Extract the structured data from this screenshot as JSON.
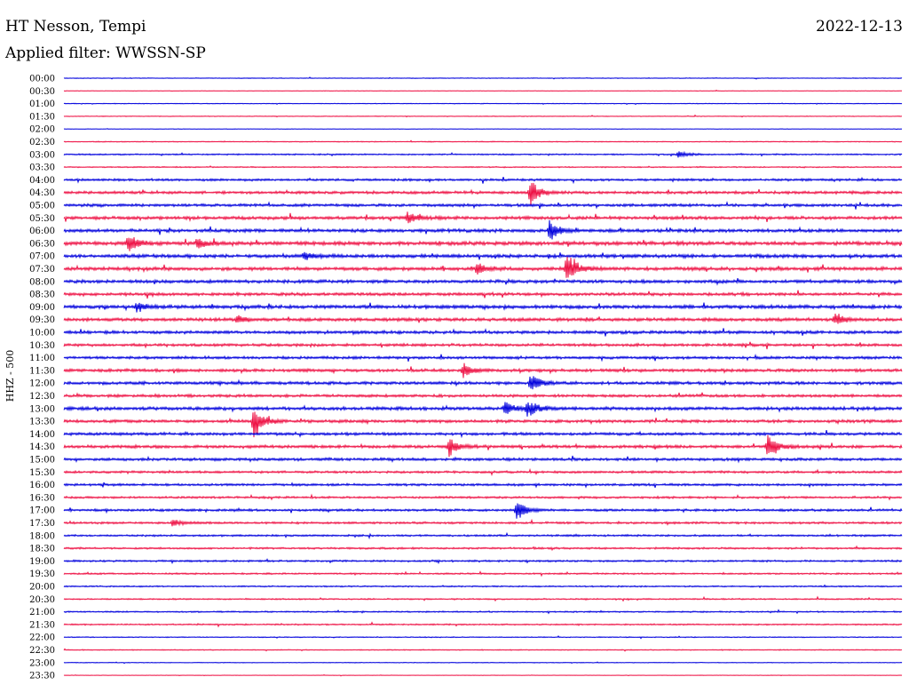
{
  "header": {
    "station": "HT Nesson, Tempi",
    "date": "2022-12-13",
    "filter_line": "Applied filter: WWSSN-SP"
  },
  "chart_data": {
    "type": "line",
    "title": "HT Nesson, Tempi",
    "ylabel": "HHZ - 500",
    "trace_colors": [
      "#0000dd",
      "#ee1144"
    ],
    "rows": [
      "00:00",
      "00:30",
      "01:00",
      "01:30",
      "02:00",
      "02:30",
      "03:00",
      "03:30",
      "04:00",
      "04:30",
      "05:00",
      "05:30",
      "06:00",
      "06:30",
      "07:00",
      "07:30",
      "08:00",
      "08:30",
      "09:00",
      "09:30",
      "10:00",
      "10:30",
      "11:00",
      "11:30",
      "12:00",
      "12:30",
      "13:00",
      "13:30",
      "14:00",
      "14:30",
      "15:00",
      "15:30",
      "16:00",
      "16:30",
      "17:00",
      "17:30",
      "18:00",
      "18:30",
      "19:00",
      "19:30",
      "20:00",
      "20:30",
      "21:00",
      "21:30",
      "22:00",
      "22:30",
      "23:00",
      "23:30"
    ],
    "noise_level": [
      0.3,
      0.2,
      0.3,
      0.3,
      0.2,
      0.4,
      0.6,
      0.5,
      1.0,
      1.2,
      1.2,
      1.4,
      1.4,
      1.6,
      1.5,
      1.5,
      1.4,
      1.3,
      1.5,
      1.4,
      1.3,
      1.2,
      1.2,
      1.3,
      1.3,
      1.2,
      1.4,
      1.3,
      1.2,
      1.3,
      1.2,
      1.0,
      1.0,
      0.9,
      1.0,
      0.9,
      0.8,
      0.8,
      0.8,
      0.7,
      0.6,
      0.6,
      0.6,
      0.6,
      0.4,
      0.4,
      0.3,
      0.2
    ],
    "events": [
      {
        "row": "03:00",
        "minute": 22,
        "amplitude": 5
      },
      {
        "row": "04:30",
        "minute": 16.7,
        "amplitude": 16
      },
      {
        "row": "05:30",
        "minute": 12.3,
        "amplitude": 8
      },
      {
        "row": "06:00",
        "minute": 17.4,
        "amplitude": 14
      },
      {
        "row": "06:30",
        "minute": 2.3,
        "amplitude": 12
      },
      {
        "row": "06:30",
        "minute": 4.8,
        "amplitude": 6
      },
      {
        "row": "07:00",
        "minute": 8.6,
        "amplitude": 5
      },
      {
        "row": "07:30",
        "minute": 18.0,
        "amplitude": 22
      },
      {
        "row": "07:30",
        "minute": 14.8,
        "amplitude": 8
      },
      {
        "row": "09:00",
        "minute": 2.6,
        "amplitude": 7
      },
      {
        "row": "09:30",
        "minute": 6.2,
        "amplitude": 5
      },
      {
        "row": "09:30",
        "minute": 27.6,
        "amplitude": 9
      },
      {
        "row": "11:30",
        "minute": 14.3,
        "amplitude": 9
      },
      {
        "row": "12:00",
        "minute": 16.7,
        "amplitude": 12
      },
      {
        "row": "13:00",
        "minute": 15.8,
        "amplitude": 10
      },
      {
        "row": "13:00",
        "minute": 16.6,
        "amplitude": 12
      },
      {
        "row": "13:30",
        "minute": 6.8,
        "amplitude": 22
      },
      {
        "row": "14:30",
        "minute": 13.8,
        "amplitude": 12
      },
      {
        "row": "14:30",
        "minute": 25.2,
        "amplitude": 18
      },
      {
        "row": "17:00",
        "minute": 16.2,
        "amplitude": 14
      },
      {
        "row": "17:30",
        "minute": 3.9,
        "amplitude": 5
      }
    ]
  }
}
